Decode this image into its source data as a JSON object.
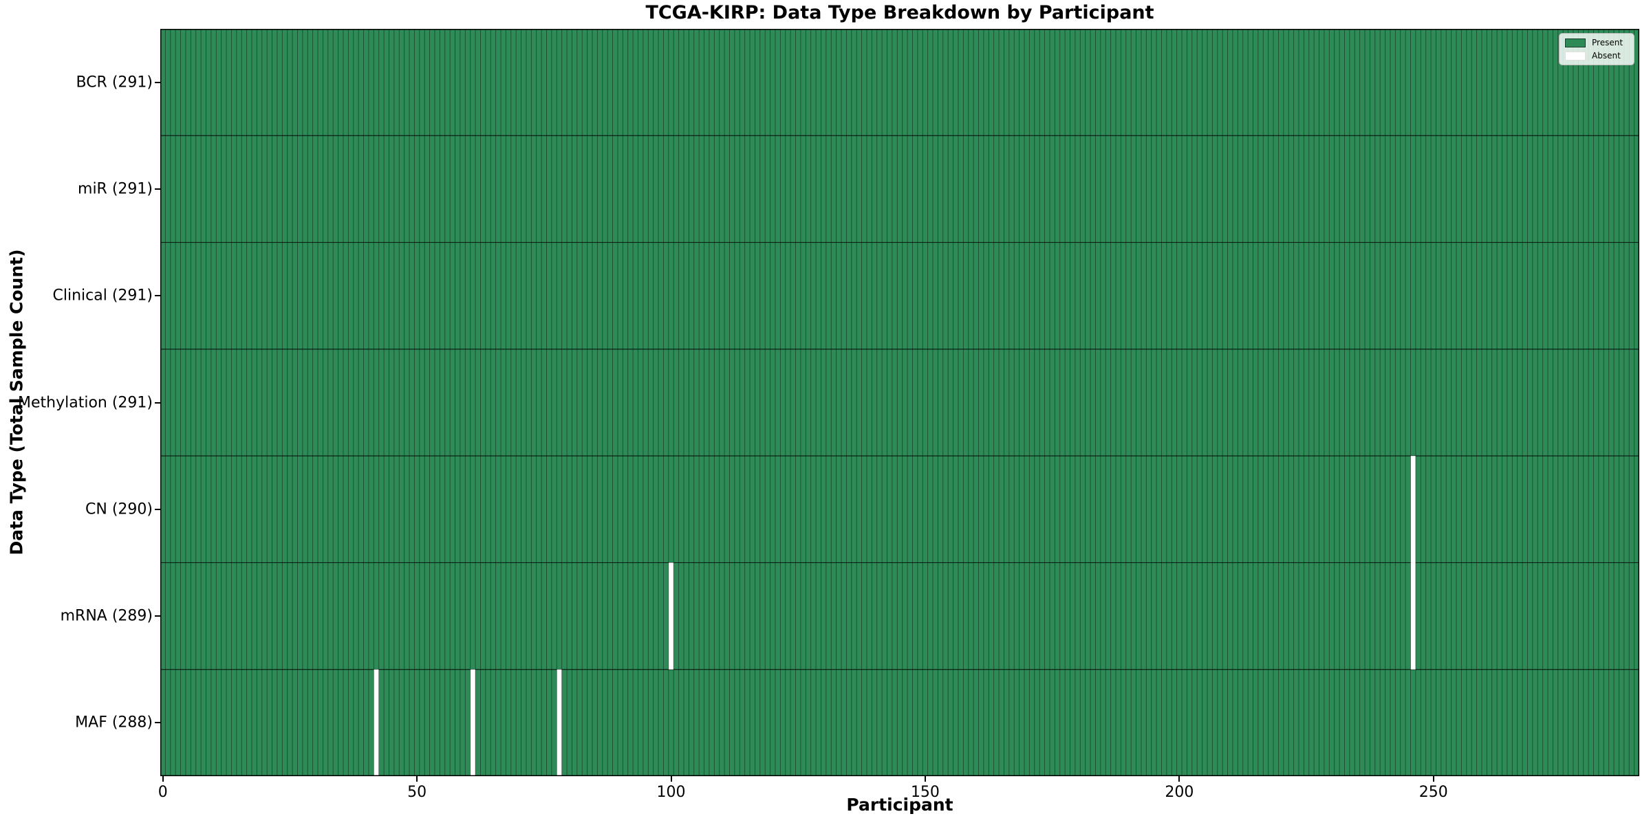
{
  "chart_data": {
    "type": "heatmap",
    "title": "TCGA-KIRP: Data Type Breakdown by Participant",
    "xlabel": "Participant",
    "ylabel": "Data Type (Total Sample Count)",
    "n_participants": 291,
    "x_ticks": [
      0,
      50,
      100,
      150,
      200,
      250
    ],
    "rows": [
      {
        "label": "BCR (291)",
        "data_type": "BCR",
        "present_count": 291,
        "absent_participants": []
      },
      {
        "label": "miR (291)",
        "data_type": "miR",
        "present_count": 291,
        "absent_participants": []
      },
      {
        "label": "Clinical (291)",
        "data_type": "Clinical",
        "present_count": 291,
        "absent_participants": []
      },
      {
        "label": "Methylation (291)",
        "data_type": "Methylation",
        "present_count": 291,
        "absent_participants": []
      },
      {
        "label": "CN (290)",
        "data_type": "CN",
        "present_count": 290,
        "absent_participants": [
          246
        ]
      },
      {
        "label": "mRNA (289)",
        "data_type": "mRNA",
        "present_count": 289,
        "absent_participants": [
          100,
          246
        ]
      },
      {
        "label": "MAF (288)",
        "data_type": "MAF",
        "present_count": 288,
        "absent_participants": [
          42,
          61,
          78
        ]
      }
    ],
    "legend": [
      {
        "label": "Present",
        "color": "#2e8b57"
      },
      {
        "label": "Absent",
        "color": "#ffffff"
      }
    ],
    "colors": {
      "present": "#2e8b57",
      "absent": "#ffffff",
      "cell_edge": "rgba(0,0,0,0.45)",
      "row_edge": "rgba(0,0,0,0.75)",
      "spine": "#000000"
    },
    "layout": {
      "legend_position": "upper right",
      "grid": "cell-edges"
    }
  }
}
